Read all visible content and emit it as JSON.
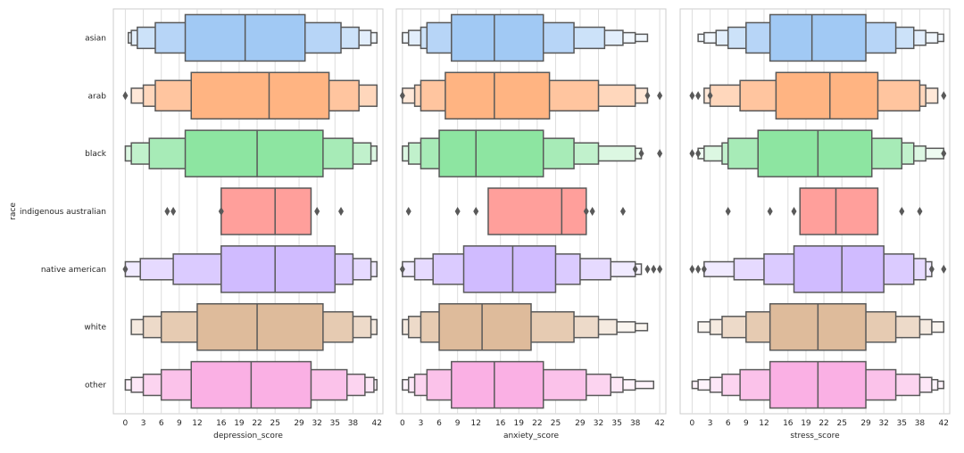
{
  "chart_data": [
    {
      "type": "boxen",
      "xlabel": "depression_score",
      "ylabel": "race",
      "xlim": [
        -2,
        43
      ],
      "xticks": [
        0,
        3,
        6,
        9,
        12,
        16,
        19,
        22,
        25,
        29,
        32,
        35,
        38,
        42
      ],
      "categories": [
        "asian",
        "arab",
        "black",
        "indigenous australian",
        "native american",
        "white",
        "other"
      ],
      "colors": [
        "#a1c9f4",
        "#ffb482",
        "#8de5a1",
        "#ff9f9b",
        "#d0bbff",
        "#debb9b",
        "#fab0e4"
      ],
      "series": [
        {
          "category": "asian",
          "median": 20,
          "levels": [
            [
              10,
              30
            ],
            [
              5,
              36
            ],
            [
              2,
              39
            ],
            [
              1,
              41
            ],
            [
              0.5,
              42
            ]
          ],
          "outliers": []
        },
        {
          "category": "arab",
          "median": 24,
          "levels": [
            [
              11,
              34
            ],
            [
              5,
              39
            ],
            [
              3,
              42
            ],
            [
              1,
              42
            ]
          ],
          "outliers": [
            0
          ]
        },
        {
          "category": "black",
          "median": 22,
          "levels": [
            [
              10,
              33
            ],
            [
              4,
              38
            ],
            [
              1,
              41
            ],
            [
              0,
              42
            ]
          ],
          "outliers": []
        },
        {
          "category": "indigenous australian",
          "median": 25,
          "levels": [
            [
              16,
              31
            ]
          ],
          "outliers": [
            7,
            8,
            16,
            32,
            36
          ]
        },
        {
          "category": "native american",
          "median": 25,
          "levels": [
            [
              16,
              35
            ],
            [
              8,
              38
            ],
            [
              2.5,
              41
            ],
            [
              0,
              42
            ]
          ],
          "outliers": [
            0
          ]
        },
        {
          "category": "white",
          "median": 22,
          "levels": [
            [
              12,
              33
            ],
            [
              6,
              38
            ],
            [
              3,
              41
            ],
            [
              1,
              42
            ]
          ],
          "outliers": []
        },
        {
          "category": "other",
          "median": 21,
          "levels": [
            [
              11,
              31
            ],
            [
              6,
              37
            ],
            [
              3,
              40
            ],
            [
              1,
              41.5
            ],
            [
              0,
              42
            ]
          ],
          "outliers": []
        }
      ]
    },
    {
      "type": "boxen",
      "xlabel": "anxiety_score",
      "ylabel": "",
      "xlim": [
        -1,
        43
      ],
      "xticks": [
        0,
        3,
        6,
        9,
        12,
        16,
        19,
        22,
        25,
        29,
        32,
        35,
        38,
        42
      ],
      "categories": [
        "asian",
        "arab",
        "black",
        "indigenous australian",
        "native american",
        "white",
        "other"
      ],
      "colors": [
        "#a1c9f4",
        "#ffb482",
        "#8de5a1",
        "#ff9f9b",
        "#d0bbff",
        "#debb9b",
        "#fab0e4"
      ],
      "series": [
        {
          "category": "asian",
          "median": 15,
          "levels": [
            [
              8,
              23
            ],
            [
              4,
              28
            ],
            [
              3,
              33
            ],
            [
              1,
              36
            ],
            [
              0,
              38
            ],
            [
              0,
              40
            ]
          ],
          "outliers": []
        },
        {
          "category": "arab",
          "median": 15,
          "levels": [
            [
              7,
              24
            ],
            [
              3,
              32
            ],
            [
              2,
              38
            ],
            [
              0,
              40
            ]
          ],
          "outliers": [
            0,
            40,
            42
          ]
        },
        {
          "category": "black",
          "median": 12,
          "levels": [
            [
              6,
              23
            ],
            [
              3,
              28
            ],
            [
              1,
              32
            ],
            [
              0,
              38
            ],
            [
              0,
              39
            ]
          ],
          "outliers": [
            39,
            42
          ]
        },
        {
          "category": "indigenous australian",
          "median": 26,
          "levels": [
            [
              14,
              30
            ]
          ],
          "outliers": [
            1,
            9,
            12,
            30,
            31,
            36
          ]
        },
        {
          "category": "native american",
          "median": 18,
          "levels": [
            [
              10,
              25
            ],
            [
              5,
              29
            ],
            [
              2,
              34
            ],
            [
              0,
              38
            ],
            [
              0,
              39
            ]
          ],
          "outliers": [
            0,
            38,
            40,
            41,
            42
          ]
        },
        {
          "category": "white",
          "median": 13,
          "levels": [
            [
              6,
              21
            ],
            [
              3,
              28
            ],
            [
              1,
              32
            ],
            [
              0,
              35
            ],
            [
              0,
              38
            ],
            [
              0,
              40
            ]
          ],
          "outliers": []
        },
        {
          "category": "other",
          "median": 15,
          "levels": [
            [
              8,
              23
            ],
            [
              4,
              30
            ],
            [
              2,
              34
            ],
            [
              1,
              36
            ],
            [
              0,
              38
            ],
            [
              0,
              41
            ]
          ],
          "outliers": []
        }
      ]
    },
    {
      "type": "boxen",
      "xlabel": "stress_score",
      "ylabel": "",
      "xlim": [
        -2,
        43
      ],
      "xticks": [
        0,
        3,
        6,
        9,
        12,
        16,
        19,
        22,
        25,
        29,
        32,
        35,
        38,
        42
      ],
      "categories": [
        "asian",
        "arab",
        "black",
        "indigenous australian",
        "native american",
        "white",
        "other"
      ],
      "colors": [
        "#a1c9f4",
        "#ffb482",
        "#8de5a1",
        "#ff9f9b",
        "#d0bbff",
        "#debb9b",
        "#fab0e4"
      ],
      "series": [
        {
          "category": "asian",
          "median": 20,
          "levels": [
            [
              13,
              29
            ],
            [
              9,
              34
            ],
            [
              6,
              37
            ],
            [
              4,
              39
            ],
            [
              2,
              41
            ],
            [
              1,
              42
            ]
          ],
          "outliers": []
        },
        {
          "category": "arab",
          "median": 23,
          "levels": [
            [
              14,
              31
            ],
            [
              8,
              38
            ],
            [
              3,
              39
            ],
            [
              2,
              41
            ]
          ],
          "outliers": [
            0,
            1,
            3,
            42
          ]
        },
        {
          "category": "black",
          "median": 21,
          "levels": [
            [
              11,
              30
            ],
            [
              6,
              35
            ],
            [
              5,
              37
            ],
            [
              2,
              39
            ],
            [
              1,
              42
            ]
          ],
          "outliers": [
            0,
            1,
            42
          ]
        },
        {
          "category": "indigenous australian",
          "median": 24,
          "levels": [
            [
              18,
              31
            ]
          ],
          "outliers": [
            6,
            13,
            17,
            35,
            38
          ]
        },
        {
          "category": "native american",
          "median": 25,
          "levels": [
            [
              17,
              32
            ],
            [
              12,
              37
            ],
            [
              7,
              39
            ],
            [
              2,
              40
            ]
          ],
          "outliers": [
            0,
            1,
            2,
            40,
            42
          ]
        },
        {
          "category": "white",
          "median": 21,
          "levels": [
            [
              13,
              29
            ],
            [
              9,
              34
            ],
            [
              5,
              38
            ],
            [
              3,
              40
            ],
            [
              1,
              42
            ]
          ],
          "outliers": []
        },
        {
          "category": "other",
          "median": 21,
          "levels": [
            [
              13,
              29
            ],
            [
              8,
              34
            ],
            [
              5,
              38
            ],
            [
              3,
              40
            ],
            [
              1,
              41
            ],
            [
              0,
              42
            ]
          ],
          "outliers": []
        }
      ]
    }
  ]
}
